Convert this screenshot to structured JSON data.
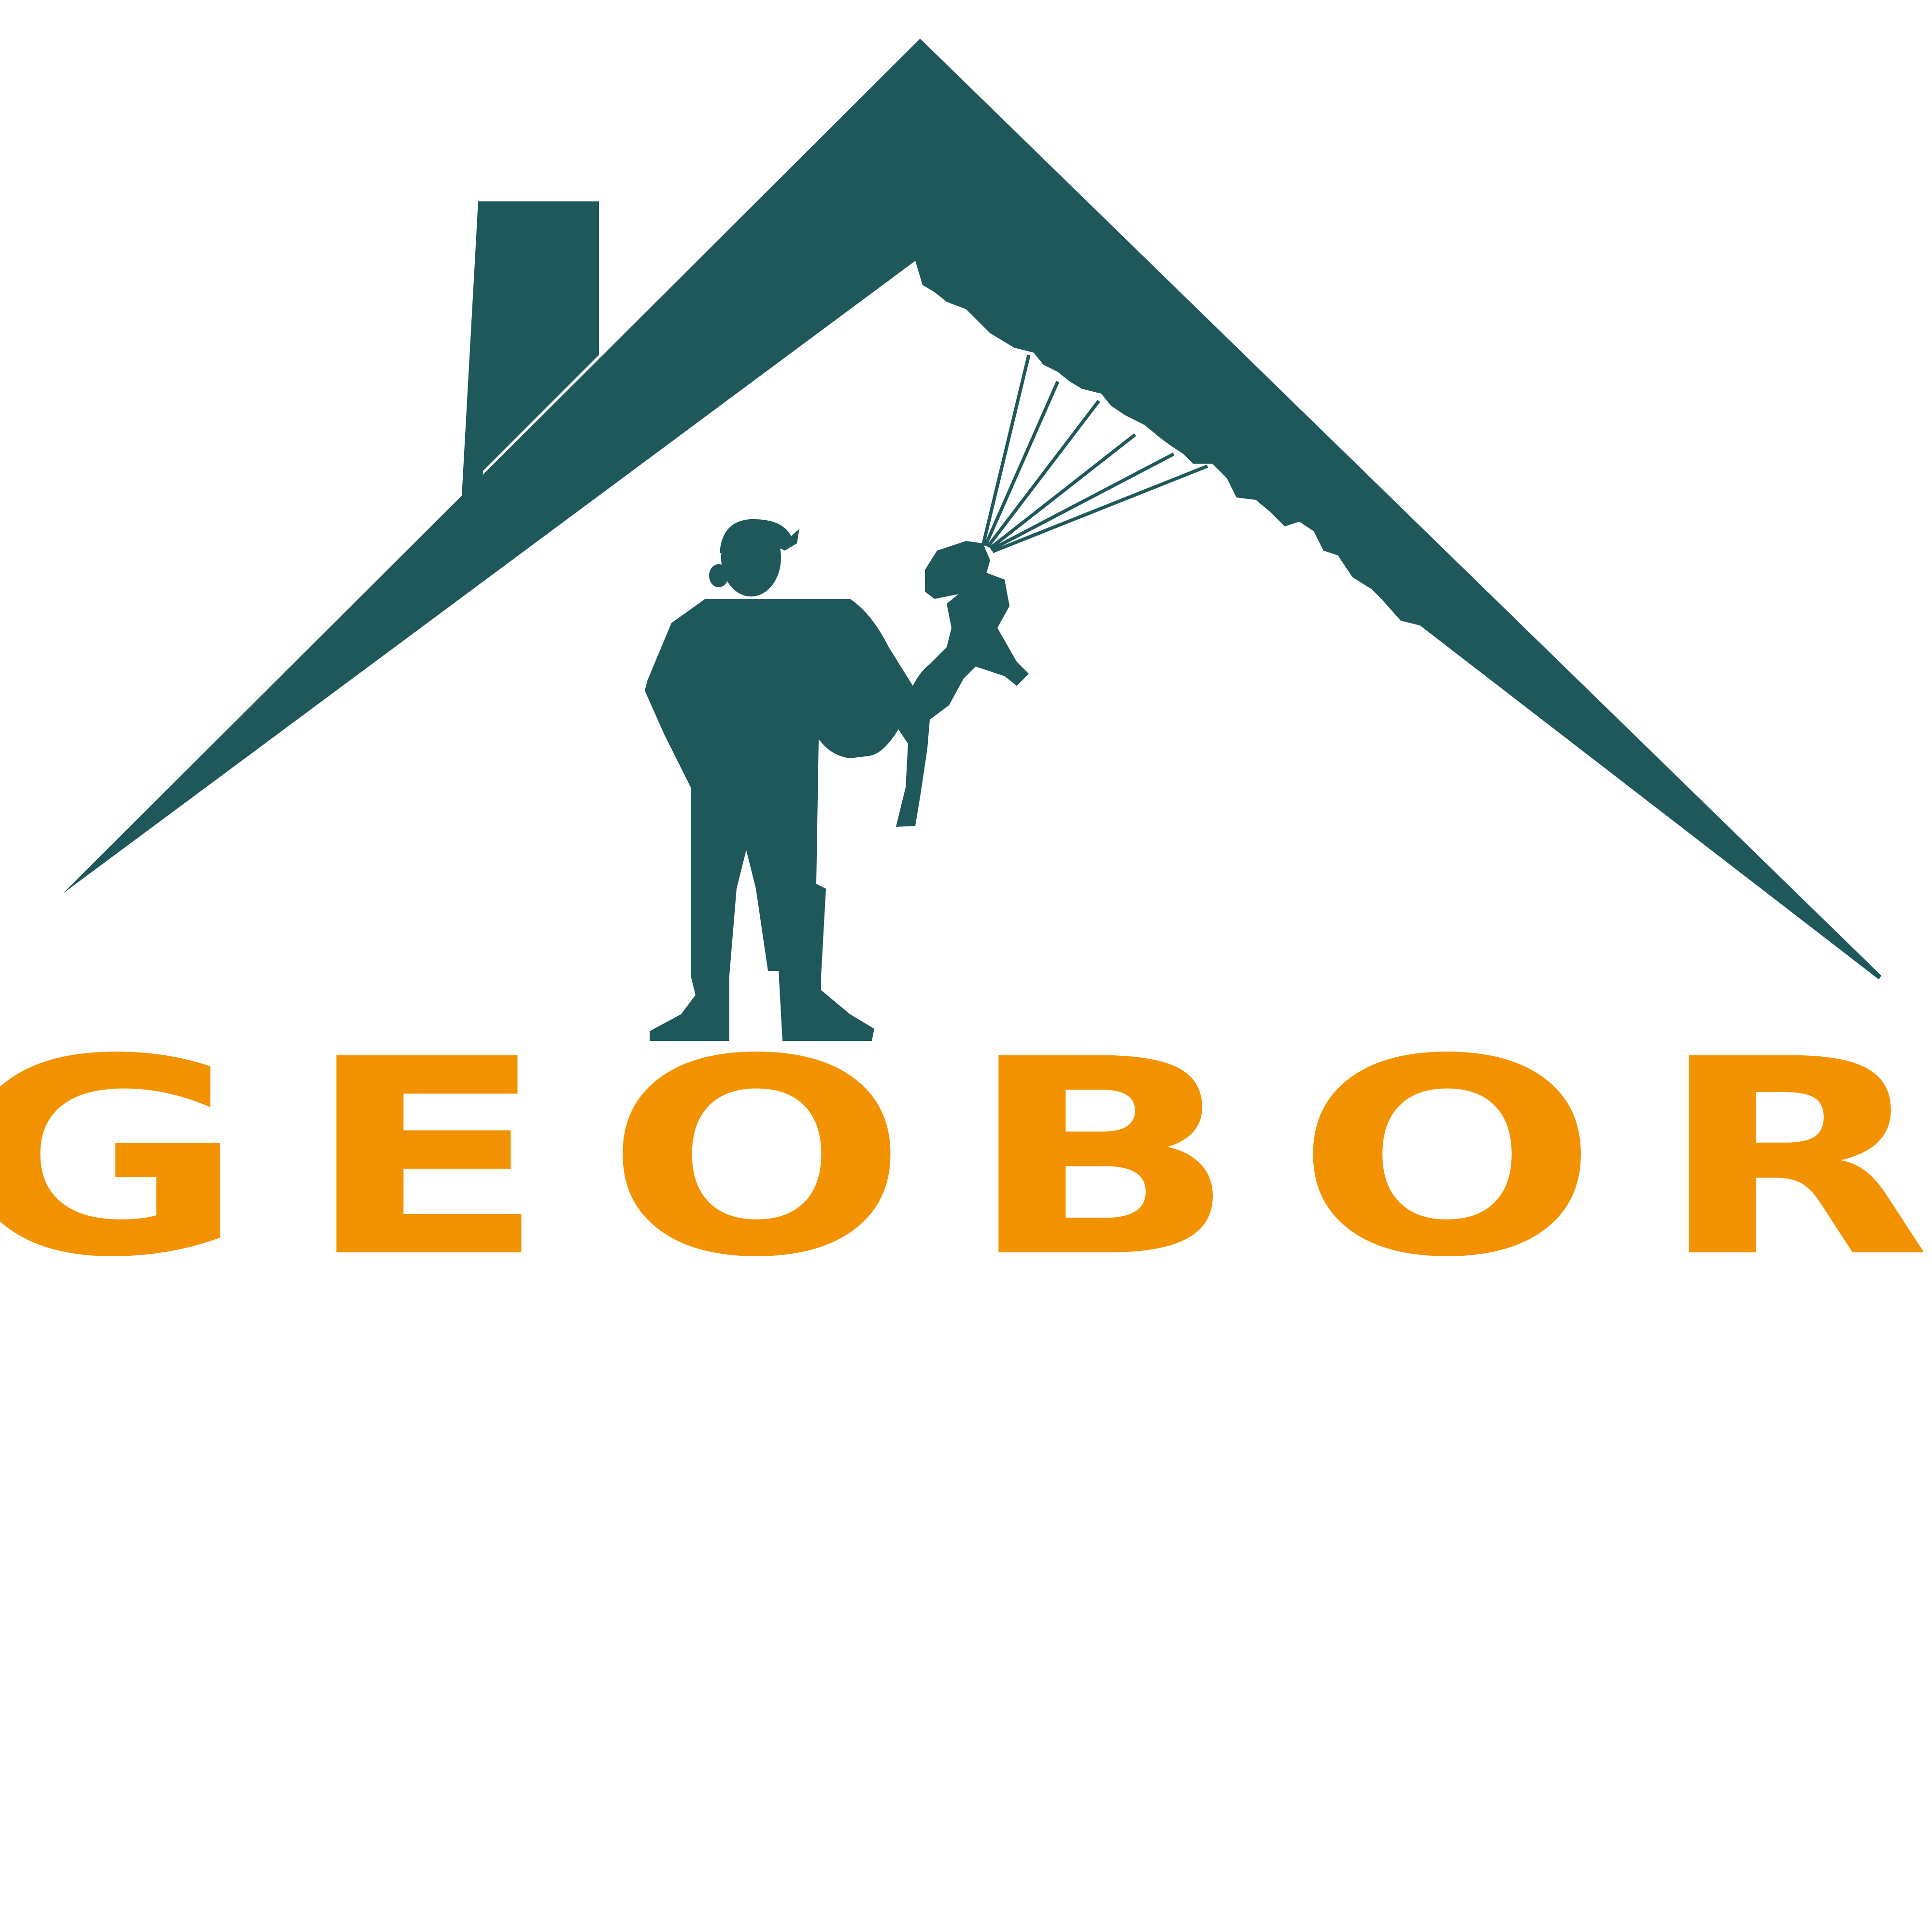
{
  "brand": {
    "name": "GEOBOR"
  },
  "colors": {
    "roof": "#1f585b",
    "figure": "#1f585b",
    "wordmark": "#f39200",
    "background": "#ffffff"
  },
  "icons": {
    "roof": "house-roof-icon",
    "chimney": "chimney-icon",
    "worker": "spray-worker-icon"
  }
}
